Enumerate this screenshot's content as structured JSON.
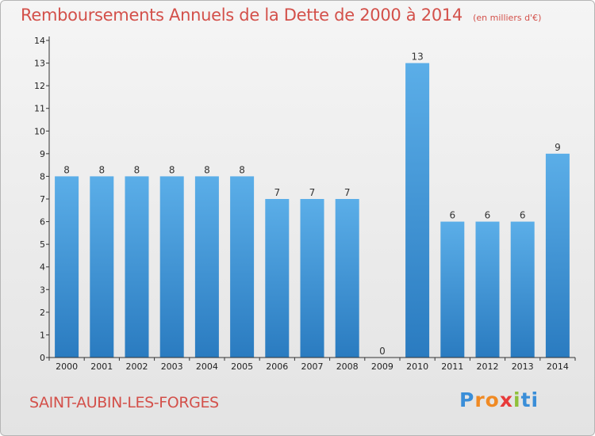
{
  "title": "Remboursements Annuels de la Dette de 2000 à 2014",
  "subtitle": "(en milliers d'€)",
  "commune": "SAINT-AUBIN-LES-FORGES",
  "logo": [
    "P",
    "r",
    "o",
    "x",
    "i",
    "ti"
  ],
  "colors": {
    "bar_top": "#5baee8",
    "bar_bottom": "#2a7bc0",
    "title": "#d3504a",
    "axis": "#333333"
  },
  "chart_data": {
    "type": "bar",
    "categories": [
      "2000",
      "2001",
      "2002",
      "2003",
      "2004",
      "2005",
      "2006",
      "2007",
      "2008",
      "2009",
      "2010",
      "2011",
      "2012",
      "2013",
      "2014"
    ],
    "values": [
      8,
      8,
      8,
      8,
      8,
      8,
      7,
      7,
      7,
      0,
      13,
      6,
      6,
      6,
      9
    ],
    "title": "Remboursements Annuels de la Dette de 2000 à 2014",
    "ylabel": "",
    "xlabel": "",
    "ylim": [
      0,
      14
    ],
    "yticks": [
      0,
      1,
      2,
      3,
      4,
      5,
      6,
      7,
      8,
      9,
      10,
      11,
      12,
      13,
      14
    ],
    "grid": false,
    "data_labels": true
  }
}
